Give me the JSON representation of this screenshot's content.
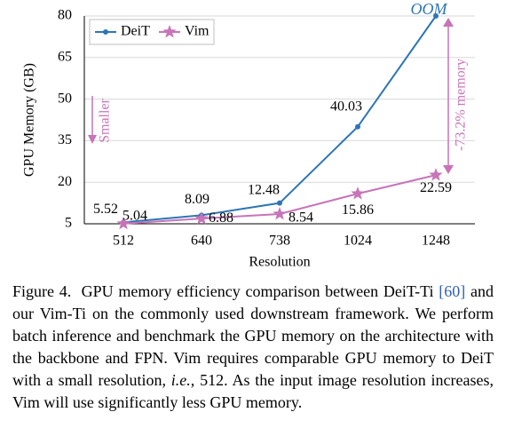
{
  "chart_data": {
    "type": "line",
    "x_label": "Resolution",
    "y_label": "GPU Memory (GB)",
    "categories": [
      "512",
      "640",
      "738",
      "1024",
      "1248"
    ],
    "series": [
      {
        "name": "DeiT",
        "color": "#2e75b6",
        "marker": "circle",
        "values": [
          5.52,
          8.09,
          12.48,
          40.03,
          80
        ]
      },
      {
        "name": "Vim",
        "color": "#c774b8",
        "marker": "star",
        "values": [
          5.04,
          6.88,
          8.54,
          15.86,
          22.59
        ]
      }
    ],
    "ylim": [
      5,
      80
    ],
    "yticks": [
      5,
      20,
      35,
      50,
      65,
      80
    ],
    "grid": true,
    "legend": "top-left",
    "annotations": [
      {
        "text": "OOM"
      },
      {
        "text": "-73.2% memory"
      },
      {
        "text": "Smaller"
      }
    ]
  },
  "caption": {
    "label": "Figure 4.",
    "text_1": "GPU memory efficiency comparison between DeiT-Ti ",
    "citation": "[60]",
    "text_2": " and our Vim-Ti on the commonly used downstream framework. We perform batch inference and benchmark the GPU memory on the architecture with the backbone and FPN. Vim requires comparable GPU memory to DeiT with a small resolution, ",
    "emphasis": "i.e.,",
    "text_3": " 512. As the input image resolution increases, Vim will use significantly less GPU memory."
  }
}
